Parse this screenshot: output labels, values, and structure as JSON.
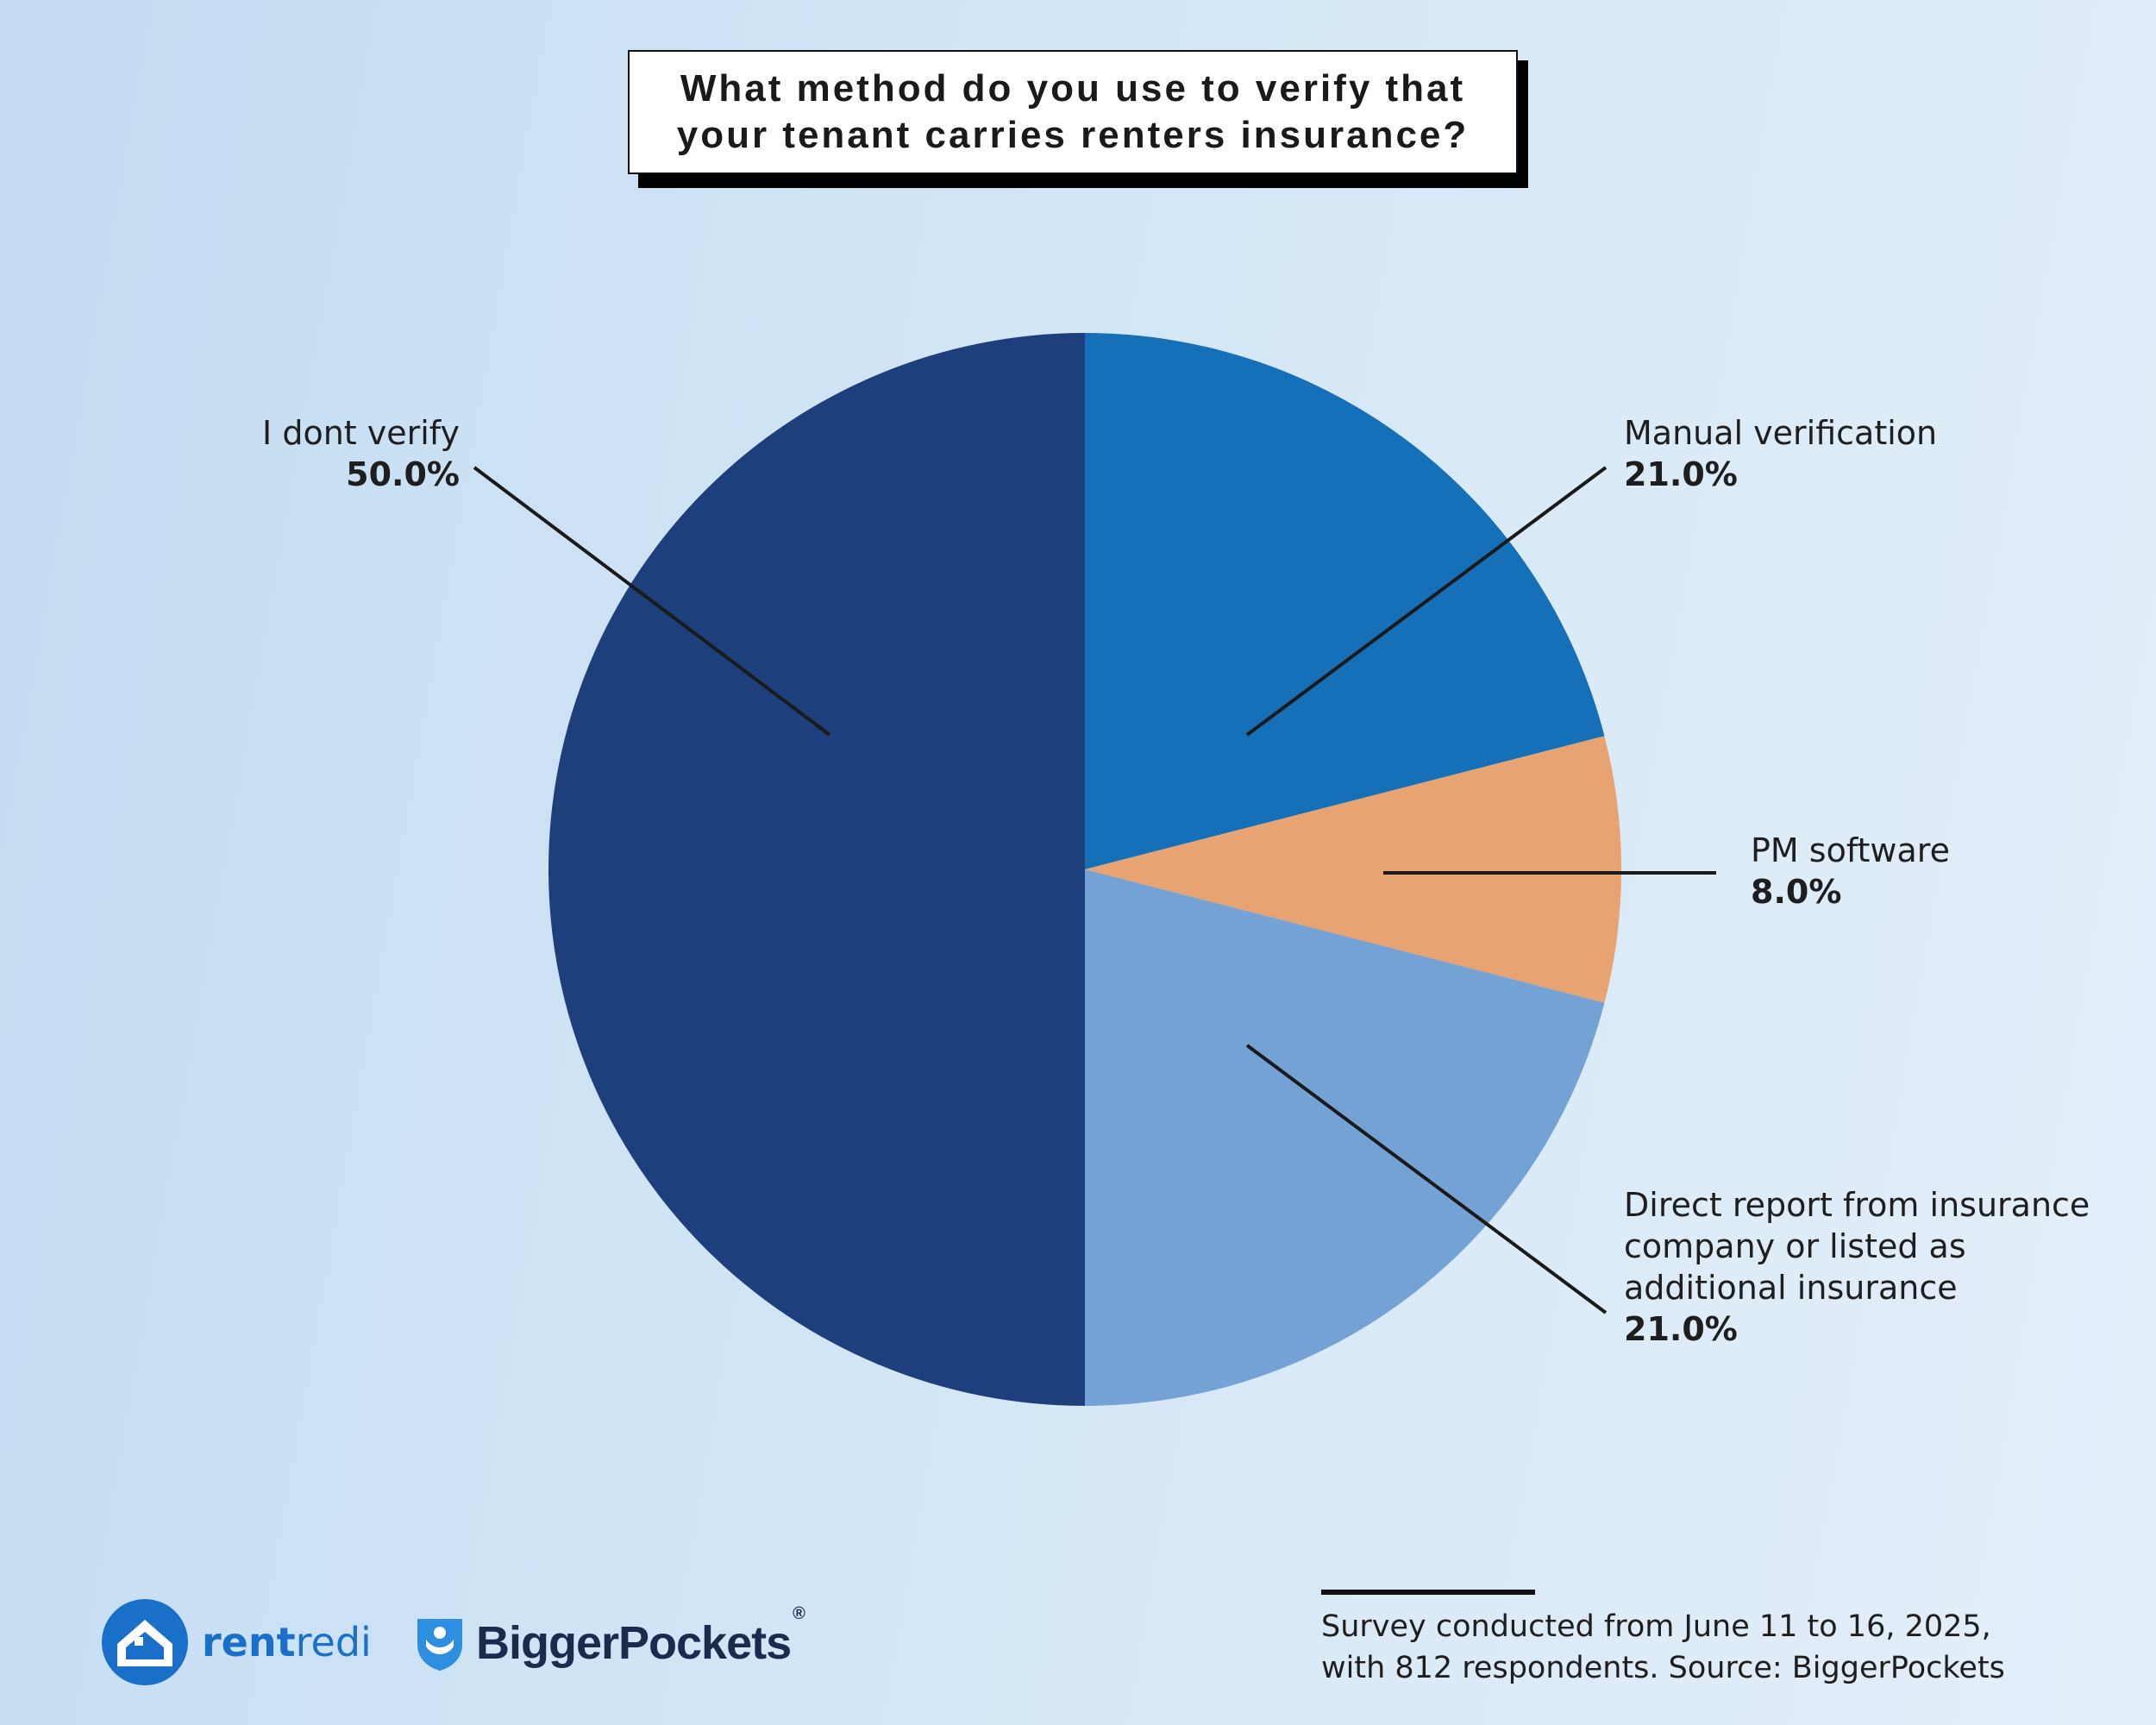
{
  "title": "What method do you use to verify that your tenant carries renters insurance?",
  "chart_data": {
    "type": "pie",
    "start_angle_deg": 0,
    "direction": "clockwise",
    "slices": [
      {
        "label": "Manual verification",
        "value": 21.0,
        "display": "21.0%",
        "color": "#1570b8"
      },
      {
        "label": "PM software",
        "value": 8.0,
        "display": "8.0%",
        "color": "#e8a372"
      },
      {
        "label": "Direct report from insurance company or listed as additional insurance",
        "value": 21.0,
        "display": "21.0%",
        "color": "#75a2d5"
      },
      {
        "label": "I dont verify",
        "value": 50.0,
        "display": "50.0%",
        "color": "#1d407d"
      }
    ]
  },
  "label_lines": {
    "line1": "Direct report from insurance",
    "line2": "company or listed as",
    "line3": "additional insurance"
  },
  "footnote": {
    "line1": "Survey conducted from June 11 to 16, 2025,",
    "line2": "with 812 respondents. Source: BiggerPockets"
  },
  "logos": {
    "rentredi_rent": "rent",
    "rentredi_redi": "redi",
    "biggerpockets": "BiggerPockets",
    "biggerpockets_mark": "®"
  },
  "colors": {
    "background_left": "#c3dcf2",
    "background_right": "#e4eff9",
    "leader_line": "#1a1a1a"
  }
}
